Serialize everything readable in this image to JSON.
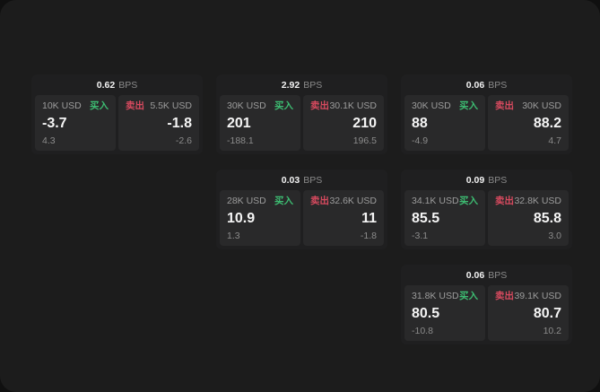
{
  "labels": {
    "bps_unit": "BPS",
    "buy": "买入",
    "sell": "卖出"
  },
  "colors": {
    "page_background": "#101010",
    "window_background": "#1c1c1c",
    "card_background": "#1f1f20",
    "panel_background": "#29292a",
    "buy_green": "#3dbd72",
    "sell_red": "#d84a5f",
    "label_gray": "#9c9c9c",
    "value_white": "#f5f5f5"
  },
  "cards": [
    {
      "bps": "0.62",
      "buy": {
        "size": "10K USD",
        "price": "-3.7",
        "delta": "4.3"
      },
      "sell": {
        "size": "5.5K USD",
        "price": "-1.8",
        "delta": "-2.6"
      }
    },
    {
      "bps": "2.92",
      "buy": {
        "size": "30K USD",
        "price": "201",
        "delta": "-188.1"
      },
      "sell": {
        "size": "30.1K USD",
        "price": "210",
        "delta": "196.5"
      }
    },
    {
      "bps": "0.06",
      "buy": {
        "size": "30K USD",
        "price": "88",
        "delta": "-4.9"
      },
      "sell": {
        "size": "30K USD",
        "price": "88.2",
        "delta": "4.7"
      }
    },
    {
      "bps": "0.03",
      "buy": {
        "size": "28K USD",
        "price": "10.9",
        "delta": "1.3"
      },
      "sell": {
        "size": "32.6K USD",
        "price": "11",
        "delta": "-1.8"
      }
    },
    {
      "bps": "0.09",
      "buy": {
        "size": "34.1K USD",
        "price": "85.5",
        "delta": "-3.1"
      },
      "sell": {
        "size": "32.8K USD",
        "price": "85.8",
        "delta": "3.0"
      }
    },
    {
      "bps": "0.06",
      "buy": {
        "size": "31.8K USD",
        "price": "80.5",
        "delta": "-10.8"
      },
      "sell": {
        "size": "39.1K USD",
        "price": "80.7",
        "delta": "10.2"
      }
    }
  ]
}
